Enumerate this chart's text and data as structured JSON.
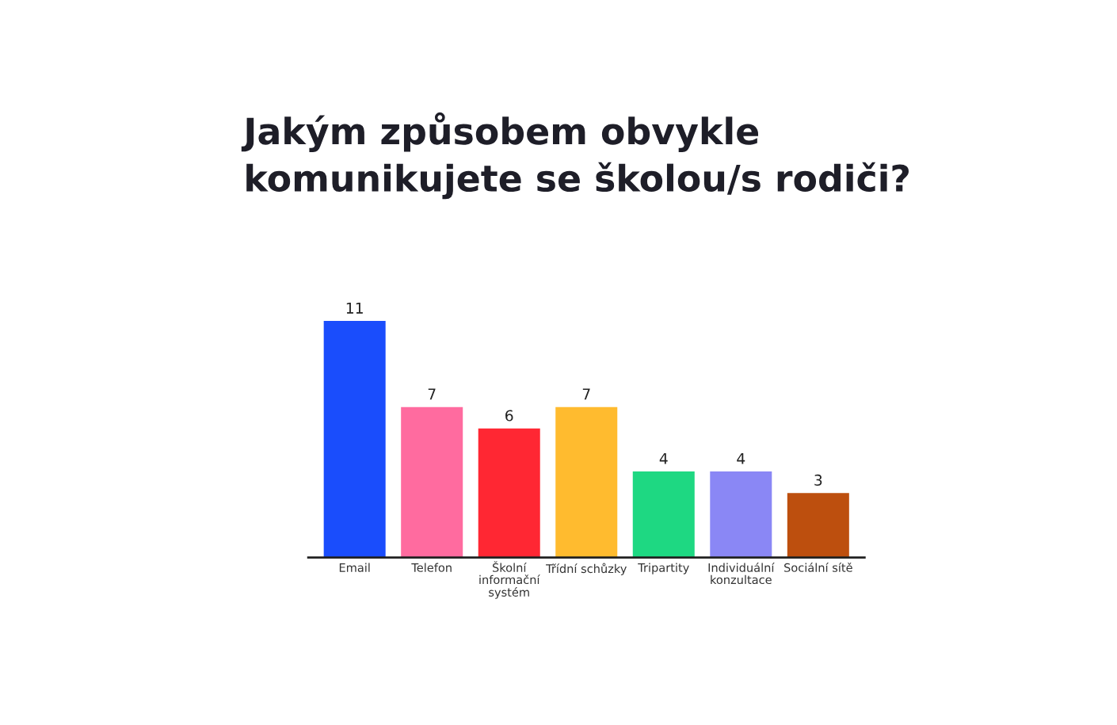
{
  "chart_data": {
    "type": "bar",
    "title": "Jakým způsobem obvykle komunikujete se školou/s rodiči?",
    "categories": [
      "Email",
      "Telefon",
      "Školní informační systém",
      "Třídní schůzky",
      "Tripartity",
      "Individuální konzultace",
      "Sociální sítě"
    ],
    "values": [
      11,
      7,
      6,
      7,
      4,
      4,
      3
    ],
    "colors": [
      "#1a4dfc",
      "#ff6b9f",
      "#ff2733",
      "#ffbb2f",
      "#1ed882",
      "#8a87f5",
      "#bd4f0e"
    ],
    "tick_labels": "x",
    "data_labels": true,
    "grid": false,
    "legend": false
  }
}
